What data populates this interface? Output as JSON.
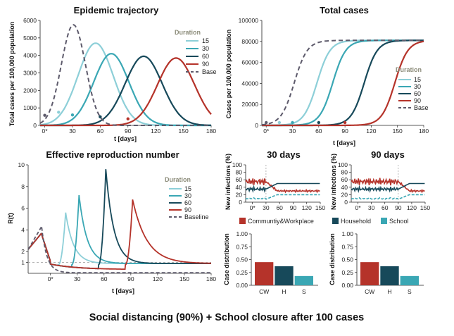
{
  "caption": "Social distancing (90%) + School closure after 100 cases",
  "colors": {
    "d15": "#8dcfd8",
    "d30": "#3aa7b4",
    "d60": "#17495a",
    "d90": "#b5332a",
    "base": "#5d5a6b",
    "cw": "#b5332a",
    "h": "#17495a",
    "s": "#3aa7b4"
  },
  "legend_labels": {
    "title": "Duration",
    "d15": "15",
    "d30": "30",
    "d60": "60",
    "d90": "90",
    "base": "Base",
    "baseline": "Baseline"
  },
  "chart_data": [
    {
      "id": "traj",
      "type": "line",
      "title": "Epidemic trajectory",
      "xlabel": "t [days]",
      "ylabel": "Total cases per 100,000 population",
      "xlim": [
        -5,
        180
      ],
      "ylim": [
        0,
        6000
      ],
      "xticks": [
        "0*",
        "30",
        "60",
        "90",
        "120",
        "150",
        "180"
      ],
      "yticks": [
        "0",
        "1000",
        "2000",
        "3000",
        "4000",
        "5000",
        "6000"
      ],
      "series": [
        {
          "name": "15",
          "peak_x": 55,
          "peak_y": 4700,
          "width": 19
        },
        {
          "name": "30",
          "peak_x": 72,
          "peak_y": 4100,
          "width": 19
        },
        {
          "name": "60",
          "peak_x": 107,
          "peak_y": 3950,
          "width": 20
        },
        {
          "name": "90",
          "peak_x": 142,
          "peak_y": 3850,
          "width": 20
        },
        {
          "name": "Base",
          "peak_x": 31,
          "peak_y": 5750,
          "width": 13
        }
      ],
      "markers": [
        {
          "x": 0,
          "series": "Base"
        },
        {
          "x": 15,
          "series": "15"
        },
        {
          "x": 30,
          "series": "30"
        },
        {
          "x": 60,
          "series": "60"
        },
        {
          "x": 90,
          "series": "90"
        }
      ]
    },
    {
      "id": "total",
      "type": "line",
      "title": "Total cases",
      "xlabel": "t [days]",
      "ylabel": "Cases per 100,000 population",
      "xlim": [
        -5,
        180
      ],
      "ylim": [
        0,
        100000
      ],
      "xticks": [
        "0*",
        "30",
        "60",
        "90",
        "120",
        "150",
        "180"
      ],
      "yticks": [
        "0",
        "20000",
        "40000",
        "60000",
        "80000",
        "100000"
      ],
      "series": [
        {
          "name": "15",
          "mid_x": 58,
          "final": 81000
        },
        {
          "name": "30",
          "mid_x": 76,
          "final": 81000
        },
        {
          "name": "60",
          "mid_x": 112,
          "final": 81000
        },
        {
          "name": "90",
          "mid_x": 147,
          "final": 81000
        },
        {
          "name": "Base",
          "mid_x": 32,
          "final": 81000
        }
      ],
      "markers": [
        {
          "x": 0,
          "series": "Base"
        },
        {
          "x": 15,
          "series": "15"
        },
        {
          "x": 30,
          "series": "30"
        },
        {
          "x": 60,
          "series": "60"
        },
        {
          "x": 90,
          "series": "90"
        }
      ]
    },
    {
      "id": "rt",
      "type": "line",
      "title": "Effective reproduction number",
      "xlabel": "t [days]",
      "ylabel": "R(t)",
      "xlim": [
        -25,
        180
      ],
      "ylim": [
        0,
        10
      ],
      "xticks": [
        "0*",
        "30",
        "60",
        "90",
        "120",
        "150",
        "180"
      ],
      "yticks": [
        "1",
        "2",
        "4",
        "6",
        "8",
        "10"
      ],
      "series": [
        {
          "name": "15",
          "spike_x": 17,
          "spike_y": 5.6
        },
        {
          "name": "30",
          "spike_x": 32,
          "spike_y": 7.2
        },
        {
          "name": "60",
          "spike_x": 62,
          "spike_y": 9.6
        },
        {
          "name": "90",
          "spike_x": 92,
          "spike_y": 6.8
        },
        {
          "name": "Baseline",
          "spike_x": -10,
          "spike_y": 4.3
        }
      ]
    },
    {
      "id": "inf30",
      "type": "line",
      "title": "30 days",
      "xlabel": "t [days]",
      "ylabel": "New infections (%)",
      "xlim": [
        -15,
        150
      ],
      "ylim": [
        0,
        100
      ],
      "xticks": [
        "0*",
        "30",
        "60",
        "90",
        "120",
        "150"
      ],
      "yticks": [
        "0",
        "20",
        "40",
        "60",
        "80",
        "100"
      ]
    },
    {
      "id": "inf90",
      "type": "line",
      "title": "90 days",
      "xlabel": "t [days]",
      "ylabel": "New infections (%)",
      "xlim": [
        -15,
        150
      ],
      "ylim": [
        0,
        100
      ],
      "xticks": [
        "0*",
        "30",
        "60",
        "90",
        "120",
        "150"
      ],
      "yticks": [
        "0",
        "20",
        "40",
        "60",
        "80",
        "100"
      ]
    },
    {
      "id": "dist30",
      "type": "bar",
      "ylabel": "Case distribution",
      "categories": [
        "CW",
        "H",
        "S"
      ],
      "values": [
        0.45,
        0.37,
        0.18
      ],
      "ylim": [
        0,
        1
      ],
      "yticks": [
        "0.00",
        "0.25",
        "0.50",
        "0.75",
        "1.00"
      ]
    },
    {
      "id": "dist90",
      "type": "bar",
      "ylabel": "Case distribution",
      "categories": [
        "CW",
        "H",
        "S"
      ],
      "values": [
        0.45,
        0.37,
        0.18
      ],
      "ylim": [
        0,
        1
      ],
      "yticks": [
        "0.00",
        "0.25",
        "0.50",
        "0.75",
        "1.00"
      ]
    }
  ],
  "setting_legend": {
    "cw": "Communtiy&Workplace",
    "h": "Household",
    "s": "School"
  }
}
